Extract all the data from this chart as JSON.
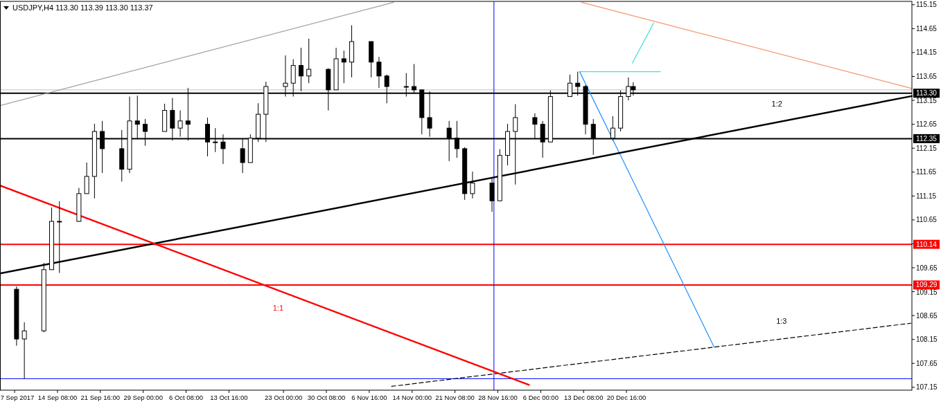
{
  "chart_data": {
    "type": "candlestick",
    "title": "USDJPY,H4  113.30 113.39 113.30 113.37",
    "color": "#000000",
    "x": [
      "2017-09-07T08:00",
      "2017-09-08T16:00",
      "2017-09-12T00:00",
      "2017-09-13T08:00",
      "2017-09-14T16:00",
      "2017-09-18T00:00",
      "2017-09-19T08:00",
      "2017-09-20T16:00",
      "2017-09-22T00:00",
      "2017-09-25T08:00",
      "2017-09-26T16:00",
      "2017-09-28T00:00",
      "2017-09-29T08:00",
      "2017-10-02T16:00",
      "2017-10-04T00:00",
      "2017-10-05T08:00",
      "2017-10-06T16:00",
      "2017-10-10T00:00",
      "2017-10-11T08:00",
      "2017-10-12T16:00",
      "2017-10-16T00:00",
      "2017-10-17T08:00",
      "2017-10-18T16:00",
      "2017-10-20T00:00",
      "2017-10-23T08:00",
      "2017-10-24T16:00",
      "2017-10-26T00:00",
      "2017-10-27T08:00",
      "2017-10-30T16:00",
      "2017-11-01T00:00",
      "2017-11-02T08:00",
      "2017-11-03T16:00",
      "2017-11-07T00:00",
      "2017-11-08T08:00",
      "2017-11-09T16:00",
      "2017-11-13T00:00",
      "2017-11-14T08:00",
      "2017-11-15T16:00",
      "2017-11-17T00:00",
      "2017-11-20T08:00",
      "2017-11-21T16:00",
      "2017-11-23T00:00",
      "2017-11-24T08:00",
      "2017-11-27T16:00",
      "2017-11-29T00:00",
      "2017-11-30T08:00",
      "2017-12-01T16:00",
      "2017-12-05T00:00",
      "2017-12-06T08:00",
      "2017-12-07T16:00",
      "2017-12-11T00:00",
      "2017-12-12T08:00",
      "2017-12-13T16:00",
      "2017-12-15T00:00",
      "2017-12-18T08:00",
      "2017-12-19T16:00",
      "2017-12-21T00:00",
      "2017-12-21T20:00"
    ],
    "ohlc": [
      [
        109.2,
        109.26,
        108.02,
        108.16
      ],
      [
        108.16,
        108.51,
        107.33,
        108.33
      ],
      [
        108.33,
        109.75,
        108.3,
        109.61
      ],
      [
        109.61,
        110.91,
        109.61,
        110.62
      ],
      [
        110.62,
        111.04,
        109.54,
        110.62
      ],
      [
        110.62,
        111.32,
        110.61,
        111.2
      ],
      [
        111.2,
        111.85,
        111.2,
        111.56
      ],
      [
        111.56,
        112.66,
        111.1,
        112.5
      ],
      [
        112.5,
        112.72,
        111.63,
        112.14
      ],
      [
        112.14,
        112.53,
        111.45,
        111.71
      ],
      [
        111.71,
        113.23,
        111.63,
        112.72
      ],
      [
        112.72,
        113.25,
        112.34,
        112.65
      ],
      [
        112.65,
        112.76,
        112.2,
        112.5
      ],
      [
        112.5,
        113.08,
        112.5,
        112.94
      ],
      [
        112.94,
        113.2,
        112.31,
        112.57
      ],
      [
        112.57,
        112.94,
        112.39,
        112.72
      ],
      [
        112.72,
        113.41,
        112.31,
        112.65
      ],
      [
        112.65,
        112.79,
        111.98,
        112.28
      ],
      [
        112.28,
        112.57,
        112.07,
        112.28
      ],
      [
        112.28,
        112.44,
        111.82,
        112.14
      ],
      [
        112.14,
        112.34,
        111.63,
        111.85
      ],
      [
        111.85,
        112.44,
        111.85,
        112.36
      ],
      [
        112.36,
        113.09,
        112.28,
        112.86
      ],
      [
        112.86,
        113.54,
        112.28,
        113.44
      ],
      [
        113.44,
        114.09,
        113.23,
        113.51
      ],
      [
        113.51,
        114.01,
        113.23,
        113.88
      ],
      [
        113.88,
        114.25,
        113.34,
        113.66
      ],
      [
        113.66,
        114.44,
        113.51,
        113.8
      ],
      [
        113.8,
        113.82,
        112.94,
        113.37
      ],
      [
        113.37,
        114.25,
        113.37,
        114.02
      ],
      [
        114.02,
        114.19,
        113.51,
        113.95
      ],
      [
        113.95,
        114.72,
        113.63,
        114.38
      ],
      [
        114.38,
        114.38,
        113.63,
        113.95
      ],
      [
        113.95,
        114.06,
        113.41,
        113.66
      ],
      [
        113.66,
        113.69,
        113.09,
        113.44
      ],
      [
        113.44,
        113.72,
        113.23,
        113.44
      ],
      [
        113.44,
        113.91,
        113.31,
        113.37
      ],
      [
        113.37,
        113.37,
        112.44,
        112.79
      ],
      [
        112.79,
        113.34,
        112.39,
        112.57
      ],
      [
        112.57,
        112.72,
        111.88,
        112.36
      ],
      [
        112.36,
        112.72,
        111.95,
        112.14
      ],
      [
        112.14,
        112.17,
        111.07,
        111.2
      ],
      [
        111.2,
        111.66,
        111.1,
        111.42
      ],
      [
        111.42,
        111.53,
        110.82,
        111.05
      ],
      [
        111.05,
        112.13,
        111.04,
        112.0
      ],
      [
        112.0,
        112.66,
        111.79,
        112.5
      ],
      [
        112.5,
        113.07,
        111.39,
        112.79
      ],
      [
        112.79,
        112.88,
        112.34,
        112.65
      ],
      [
        112.65,
        112.72,
        111.95,
        112.28
      ],
      [
        112.28,
        113.36,
        112.28,
        113.23
      ],
      [
        113.23,
        113.69,
        113.23,
        113.51
      ],
      [
        113.51,
        113.75,
        113.25,
        113.44
      ],
      [
        113.44,
        113.47,
        112.44,
        112.65
      ],
      [
        112.65,
        112.76,
        112.01,
        112.36
      ],
      [
        112.36,
        112.82,
        112.31,
        112.57
      ],
      [
        112.57,
        113.36,
        112.5,
        113.23
      ],
      [
        113.23,
        113.63,
        113.15,
        113.44
      ],
      [
        113.44,
        113.53,
        113.25,
        113.37
      ]
    ],
    "series": [
      {
        "type": "line",
        "color": "#a0a0a0",
        "x": [
          "2017-09-04T12:00",
          "2017-11-10T20:00"
        ],
        "values": [
          113.04,
          115.2
        ]
      },
      {
        "type": "line",
        "color": "#f4956a",
        "x": [
          "2017-12-13T00:00",
          "2018-02-07T12:00"
        ],
        "values": [
          115.2,
          113.4
        ]
      },
      {
        "type": "line",
        "color": "#40e0d0",
        "x": [
          "2017-12-12T16:00",
          "2017-12-26T12:00"
        ],
        "values": [
          113.75,
          113.75
        ]
      },
      {
        "type": "line",
        "color": "#40e0d0",
        "x": [
          "2017-12-21T16:00",
          "2017-12-25T08:00"
        ],
        "values": [
          113.93,
          114.77
        ]
      },
      {
        "type": "line",
        "color": "#1e90ff",
        "x": [
          "2017-12-12T16:00",
          "2018-01-04T16:00"
        ],
        "values": [
          113.75,
          107.99
        ]
      },
      {
        "type": "line",
        "color": "#000000",
        "line_style": "dashed",
        "x": [
          "2017-11-10T12:00",
          "2018-02-07T08:00"
        ],
        "values": [
          107.17,
          108.49
        ]
      },
      {
        "type": "line",
        "color": "#000000",
        "x": [
          "2017-09-04T12:00",
          "2018-02-07T12:00"
        ],
        "values": [
          109.53,
          113.24
        ]
      },
      {
        "type": "line",
        "color": "#ff0000",
        "x": [
          "2017-09-04T12:00",
          "2017-12-04T00:00"
        ],
        "values": [
          111.37,
          107.2
        ]
      }
    ],
    "ref_lines": [
      {
        "axis": "y",
        "value": 113.37,
        "color": "#c0c0c0"
      },
      {
        "axis": "y",
        "value": 113.3,
        "label": "113.30",
        "color": "#000000"
      },
      {
        "axis": "y",
        "value": 112.35,
        "label": "112.35",
        "color": "#000000"
      },
      {
        "axis": "y",
        "value": 110.14,
        "label": "110.14",
        "color": "#ff0000"
      },
      {
        "axis": "y",
        "value": 109.29,
        "label": "109.29",
        "color": "#ff0000"
      },
      {
        "axis": "y",
        "value": 107.33,
        "color": "#0000ff"
      },
      {
        "axis": "x",
        "value": "2017-11-28T00:00",
        "color": "#0000ff"
      }
    ],
    "annotations": [
      "1:1",
      "1:2",
      "1:3"
    ],
    "xlim": [
      "2017-09-04T12:00",
      "2018-02-07T12:00"
    ],
    "ylim": [
      107.09,
      115.22
    ],
    "xticks": [
      {
        "value": "2017-09-07",
        "label": "7 Sep 2017"
      },
      {
        "value": "2017-09-14T08:00",
        "label": "14 Sep 08:00"
      },
      {
        "value": "2017-09-21T16:00",
        "label": "21 Sep 16:00"
      },
      {
        "value": "2017-09-29T00:00",
        "label": "29 Sep 00:00"
      },
      {
        "value": "2017-10-06T08:00",
        "label": "6 Oct 08:00"
      },
      {
        "value": "2017-10-13T16:00",
        "label": "13 Oct 16:00"
      },
      {
        "value": "2017-10-23T00:00",
        "label": "23 Oct 00:00"
      },
      {
        "value": "2017-10-30T08:00",
        "label": "30 Oct 08:00"
      },
      {
        "value": "2017-11-06T16:00",
        "label": "6 Nov 16:00"
      },
      {
        "value": "2017-11-14T00:00",
        "label": "14 Nov 00:00"
      },
      {
        "value": "2017-11-21T08:00",
        "label": "21 Nov 08:00"
      },
      {
        "value": "2017-11-28T16:00",
        "label": "28 Nov 16:00"
      },
      {
        "value": "2017-12-06T00:00",
        "label": "6 Dec 00:00"
      },
      {
        "value": "2017-12-13T08:00",
        "label": "13 Dec 08:00"
      },
      {
        "value": "2017-12-20T16:00",
        "label": "20 Dec 16:00"
      }
    ],
    "yticks": [
      115.15,
      114.65,
      114.15,
      113.65,
      113.15,
      112.65,
      112.15,
      111.65,
      111.15,
      110.65,
      {
        "value": 110.15,
        "label": null
      },
      109.65,
      109.15,
      108.65,
      108.15,
      107.65,
      107.15
    ],
    "grid": false
  }
}
